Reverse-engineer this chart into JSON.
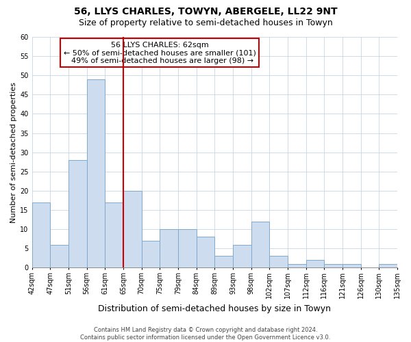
{
  "title": "56, LLYS CHARLES, TOWYN, ABERGELE, LL22 9NT",
  "subtitle": "Size of property relative to semi-detached houses in Towyn",
  "xlabel": "Distribution of semi-detached houses by size in Towyn",
  "ylabel": "Number of semi-detached properties",
  "bin_labels": [
    "42sqm",
    "47sqm",
    "51sqm",
    "56sqm",
    "61sqm",
    "65sqm",
    "70sqm",
    "75sqm",
    "79sqm",
    "84sqm",
    "89sqm",
    "93sqm",
    "98sqm",
    "102sqm",
    "107sqm",
    "112sqm",
    "116sqm",
    "121sqm",
    "126sqm",
    "130sqm",
    "135sqm"
  ],
  "bar_heights": [
    17,
    6,
    28,
    49,
    17,
    20,
    7,
    10,
    10,
    8,
    3,
    6,
    12,
    3,
    1,
    2,
    1,
    1,
    0,
    1
  ],
  "bar_color": "#cddcef",
  "bar_edge_color": "#7fa8cc",
  "property_size": "62sqm",
  "smaller_pct": 50,
  "smaller_count": 101,
  "larger_pct": 49,
  "larger_count": 98,
  "vline_color": "#cc0000",
  "annotation_box_edge_color": "#cc0000",
  "ylim": [
    0,
    60
  ],
  "yticks": [
    0,
    5,
    10,
    15,
    20,
    25,
    30,
    35,
    40,
    45,
    50,
    55,
    60
  ],
  "footer_line1": "Contains HM Land Registry data © Crown copyright and database right 2024.",
  "footer_line2": "Contains public sector information licensed under the Open Government Licence v3.0.",
  "title_fontsize": 10,
  "subtitle_fontsize": 9,
  "xlabel_fontsize": 9,
  "ylabel_fontsize": 8,
  "tick_fontsize": 7,
  "annotation_fontsize": 8,
  "footer_fontsize": 6
}
